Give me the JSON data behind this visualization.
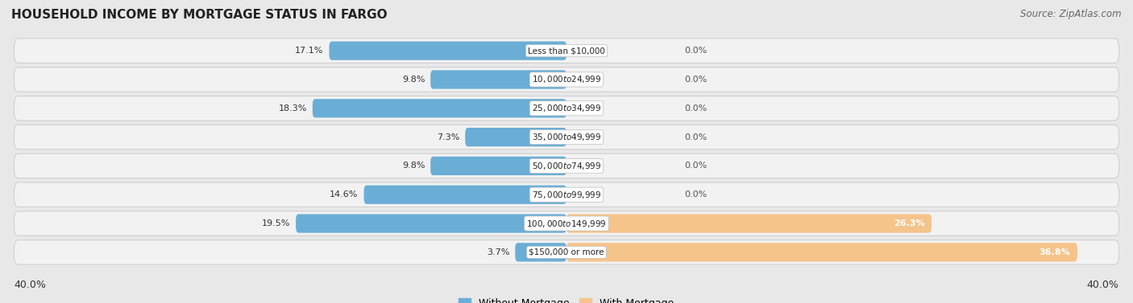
{
  "title": "HOUSEHOLD INCOME BY MORTGAGE STATUS IN FARGO",
  "source": "Source: ZipAtlas.com",
  "categories": [
    "Less than $10,000",
    "$10,000 to $24,999",
    "$25,000 to $34,999",
    "$35,000 to $49,999",
    "$50,000 to $74,999",
    "$75,000 to $99,999",
    "$100,000 to $149,999",
    "$150,000 or more"
  ],
  "without_mortgage": [
    17.1,
    9.8,
    18.3,
    7.3,
    9.8,
    14.6,
    19.5,
    3.7
  ],
  "with_mortgage": [
    0.0,
    0.0,
    0.0,
    0.0,
    0.0,
    0.0,
    26.3,
    36.8
  ],
  "color_without": "#6aaed6",
  "color_with": "#f5c48a",
  "axis_max": 40.0,
  "background_color": "#e8e8e8",
  "row_bg_color": "#f2f2f2",
  "row_edge_color": "#d0d0d0",
  "title_fontsize": 11,
  "source_fontsize": 8.5,
  "label_fontsize": 8,
  "cat_fontsize": 7.5,
  "legend_fontsize": 9,
  "axis_label_fontsize": 9
}
